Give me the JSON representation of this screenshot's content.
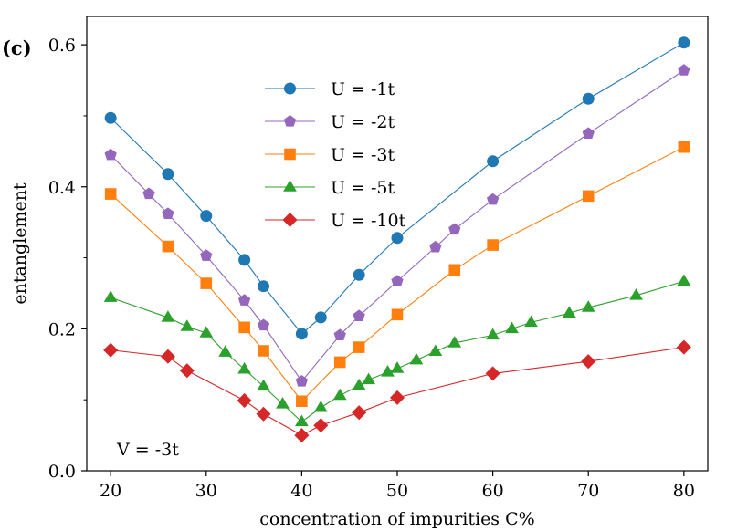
{
  "panel_label": "(c)",
  "chart_data": {
    "type": "line",
    "title": "",
    "xlabel": "concentration of impurities C%",
    "ylabel": "entanglement",
    "xlim": [
      17.5,
      82.5
    ],
    "ylim": [
      0.0,
      0.64
    ],
    "x_ticks": [
      20,
      30,
      40,
      50,
      60,
      70,
      80
    ],
    "x_tick_labels": [
      "20",
      "30",
      "40",
      "50",
      "60",
      "70",
      "80"
    ],
    "y_ticks": [
      0.0,
      0.2,
      0.4,
      0.6
    ],
    "y_tick_labels": [
      "0.0",
      "0.2",
      "0.4",
      "0.6"
    ],
    "y_minor_ticks": [
      0.1,
      0.3,
      0.5
    ],
    "grid": false,
    "legend_position": "upper-center",
    "annotation": "V = -3t",
    "series": [
      {
        "name": "U = -1t",
        "color": "#1f77b4",
        "marker": "circle",
        "x": [
          20,
          26,
          30,
          34,
          36,
          40,
          42,
          46,
          50,
          60,
          70,
          80
        ],
        "y": [
          0.497,
          0.418,
          0.359,
          0.297,
          0.26,
          0.193,
          0.216,
          0.276,
          0.328,
          0.436,
          0.524,
          0.603
        ]
      },
      {
        "name": "U = -2t",
        "color": "#9467bd",
        "marker": "pentagon",
        "x": [
          20,
          24,
          26,
          30,
          34,
          36,
          40,
          44,
          46,
          50,
          54,
          56,
          60,
          70,
          80
        ],
        "y": [
          0.445,
          0.39,
          0.362,
          0.303,
          0.24,
          0.205,
          0.126,
          0.191,
          0.218,
          0.267,
          0.315,
          0.34,
          0.382,
          0.475,
          0.564
        ]
      },
      {
        "name": "U = -3t",
        "color": "#ff7f0e",
        "marker": "square",
        "x": [
          20,
          26,
          30,
          34,
          36,
          40,
          44,
          46,
          50,
          56,
          60,
          70,
          80
        ],
        "y": [
          0.39,
          0.316,
          0.264,
          0.202,
          0.169,
          0.098,
          0.153,
          0.174,
          0.22,
          0.283,
          0.318,
          0.387,
          0.456
        ]
      },
      {
        "name": "U = -5t",
        "color": "#2ca02c",
        "marker": "triangle",
        "x": [
          20,
          26,
          28,
          30,
          32,
          34,
          36,
          38,
          40,
          42,
          44,
          46,
          47,
          49,
          50,
          52,
          54,
          56,
          60,
          62,
          64,
          68,
          70,
          75,
          80
        ],
        "y": [
          0.244,
          0.216,
          0.203,
          0.194,
          0.167,
          0.143,
          0.119,
          0.094,
          0.069,
          0.089,
          0.106,
          0.12,
          0.128,
          0.139,
          0.144,
          0.156,
          0.168,
          0.18,
          0.191,
          0.2,
          0.209,
          0.222,
          0.23,
          0.247,
          0.267
        ]
      },
      {
        "name": "U = -10t",
        "color": "#d62728",
        "marker": "diamond",
        "x": [
          20,
          26,
          28,
          34,
          36,
          40,
          42,
          46,
          50,
          60,
          70,
          80
        ],
        "y": [
          0.17,
          0.161,
          0.141,
          0.099,
          0.08,
          0.05,
          0.064,
          0.082,
          0.103,
          0.137,
          0.154,
          0.174
        ]
      }
    ]
  }
}
